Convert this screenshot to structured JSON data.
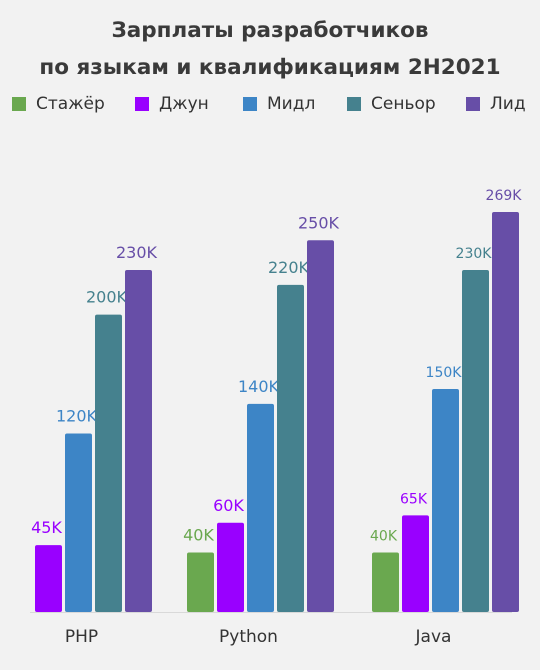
{
  "chart_data": {
    "type": "bar",
    "title_lines": [
      "Зарплаты разработчиков",
      "по языкам и квалификациям 2H2021"
    ],
    "categories": [
      "PHP",
      "Python",
      "Java"
    ],
    "series": [
      {
        "name": "Стажёр",
        "color": "#6aa84f",
        "values": [
          null,
          40,
          40
        ],
        "labels": [
          "",
          "40K",
          "40K"
        ]
      },
      {
        "name": "Джун",
        "color": "#9900ff",
        "values": [
          45,
          60,
          65
        ],
        "labels": [
          "45K",
          "60K",
          "65K"
        ]
      },
      {
        "name": "Мидл",
        "color": "#3d85c6",
        "values": [
          120,
          140,
          150
        ],
        "labels": [
          "120K",
          "140K",
          "150K"
        ]
      },
      {
        "name": "Сеньор",
        "color": "#45818e",
        "values": [
          200,
          220,
          230
        ],
        "labels": [
          "200K",
          "220K",
          "230K"
        ]
      },
      {
        "name": "Лид",
        "color": "#674ea7",
        "values": [
          230,
          250,
          269
        ],
        "labels": [
          "230K",
          "250K",
          "269K"
        ]
      }
    ],
    "unit": "K",
    "ylim": [
      0,
      300
    ],
    "grid": false,
    "legend_position": "top"
  }
}
